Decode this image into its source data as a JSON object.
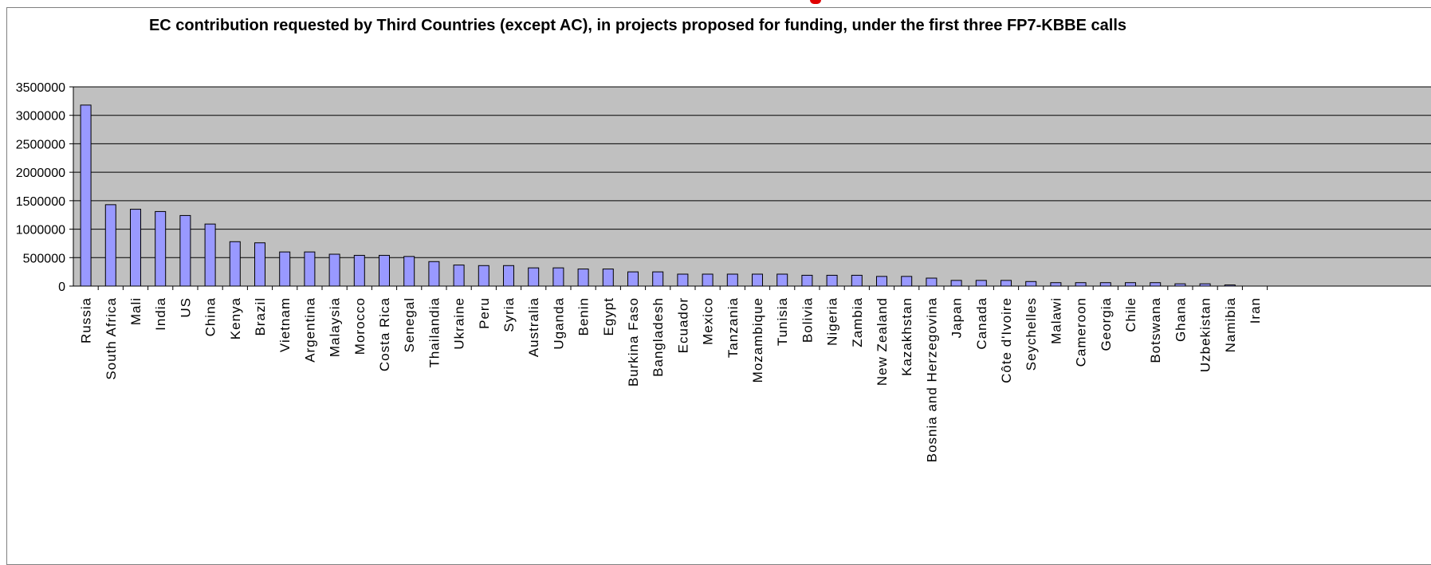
{
  "chart_data": {
    "type": "bar",
    "title": "EC contribution requested by Third Countries (except AC), in projects proposed for funding, under the first three FP7-KBBE calls",
    "xlabel": "",
    "ylabel": "",
    "ylim": [
      0,
      3500000
    ],
    "yticks": [
      0,
      500000,
      1000000,
      1500000,
      2000000,
      2500000,
      3000000,
      3500000
    ],
    "ytick_labels": [
      "0",
      "500000",
      "1000000",
      "1500000",
      "2000000",
      "2500000",
      "3000000",
      "3500000"
    ],
    "grid": true,
    "legend": "none",
    "categories": [
      "Russia",
      "South Africa",
      "Mali",
      "India",
      "US",
      "China",
      "Kenya",
      "Brazil",
      "Vietnam",
      "Argentina",
      "Malaysia",
      "Morocco",
      "Costa Rica",
      "Senegal",
      "Thailandia",
      "Ukraine",
      "Peru",
      "Syria",
      "Australia",
      "Uganda",
      "Benin",
      "Egypt",
      "Burkina Faso",
      "Bangladesh",
      "Ecuador",
      "Mexico",
      "Tanzania",
      "Mozambique",
      "Tunisia",
      "Bolivia",
      "Nigeria",
      "Zambia",
      "New Zealand",
      "Kazakhstan",
      "Bosnia and Herzegovina",
      "Japan",
      "Canada",
      "Côte d'Ivoire",
      "Seychelles",
      "Malawi",
      "Cameroon",
      "Georgia",
      "Chile",
      "Botswana",
      "Ghana",
      "Uzbekistan",
      "Namibia",
      "Iran"
    ],
    "values": [
      3180000,
      1430000,
      1350000,
      1310000,
      1240000,
      1090000,
      780000,
      760000,
      600000,
      600000,
      560000,
      540000,
      540000,
      520000,
      430000,
      370000,
      360000,
      360000,
      320000,
      320000,
      300000,
      300000,
      250000,
      250000,
      210000,
      210000,
      210000,
      210000,
      210000,
      190000,
      190000,
      190000,
      170000,
      170000,
      140000,
      100000,
      100000,
      100000,
      80000,
      60000,
      60000,
      60000,
      60000,
      60000,
      40000,
      40000,
      20000,
      0
    ],
    "colors": {
      "bar_fill": "#9999ff",
      "bar_stroke": "#000000",
      "plot_background": "#c0c0c0",
      "gridline": "#000000"
    }
  }
}
